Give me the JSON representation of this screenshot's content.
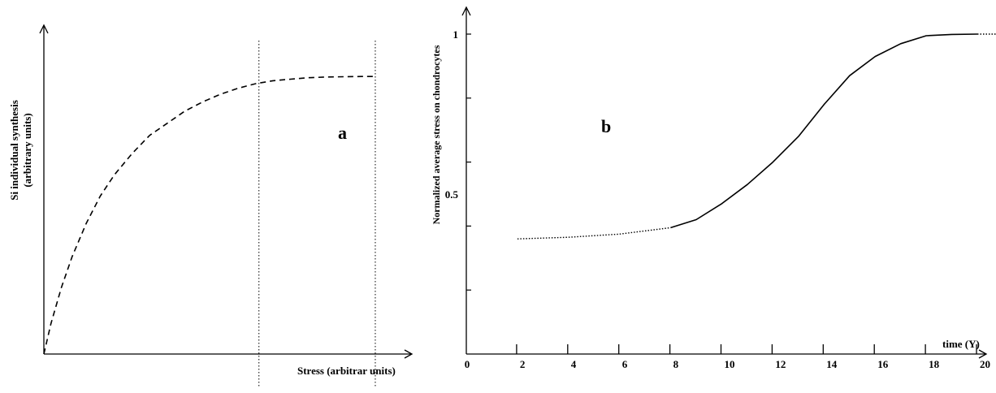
{
  "chart_data": [
    {
      "type": "line",
      "panel_label": "a",
      "xlabel": "Stress (arbitrar units)",
      "ylabel": "Si individual synthesis",
      "ylabel_units": "(arbitrary units)",
      "xlim": [
        0,
        1
      ],
      "ylim": [
        0,
        1
      ],
      "x_ticks": [],
      "y_ticks": [],
      "vertical_markers": [
        0.61,
        0.94
      ],
      "series": [
        {
          "style": "dashed",
          "x": [
            0,
            0.02,
            0.05,
            0.08,
            0.12,
            0.16,
            0.2,
            0.25,
            0.3,
            0.35,
            0.4,
            0.45,
            0.5,
            0.55,
            0.6,
            0.65,
            0.7,
            0.75,
            0.8,
            0.85,
            0.9,
            0.94
          ],
          "y": [
            0,
            0.1,
            0.22,
            0.32,
            0.43,
            0.52,
            0.59,
            0.66,
            0.72,
            0.76,
            0.8,
            0.83,
            0.855,
            0.875,
            0.89,
            0.9,
            0.905,
            0.91,
            0.912,
            0.913,
            0.914,
            0.914
          ]
        }
      ]
    },
    {
      "type": "line",
      "panel_label": "b",
      "xlabel": "time (Y)",
      "ylabel": "Normalized average stress on chondrocytes",
      "xlim": [
        0,
        22
      ],
      "ylim": [
        0,
        1.08
      ],
      "x_ticks": [
        "0",
        "2",
        "4",
        "6",
        "8",
        "10",
        "12",
        "14",
        "16",
        "18",
        "20"
      ],
      "y_ticks": [
        "0.5",
        "1"
      ],
      "series": [
        {
          "style": "dotted",
          "x": [
            2,
            4,
            6,
            8
          ],
          "y": [
            0.36,
            0.365,
            0.375,
            0.395
          ]
        },
        {
          "style": "solid",
          "x": [
            8,
            9,
            10,
            11,
            12,
            13,
            14,
            15,
            16,
            17,
            18,
            19,
            20
          ],
          "y": [
            0.395,
            0.42,
            0.47,
            0.53,
            0.6,
            0.68,
            0.78,
            0.87,
            0.93,
            0.97,
            0.995,
            0.999,
            1.0
          ]
        },
        {
          "style": "dotted",
          "x": [
            20,
            21,
            22
          ],
          "y": [
            1.0,
            1.0,
            1.0
          ]
        }
      ]
    }
  ]
}
